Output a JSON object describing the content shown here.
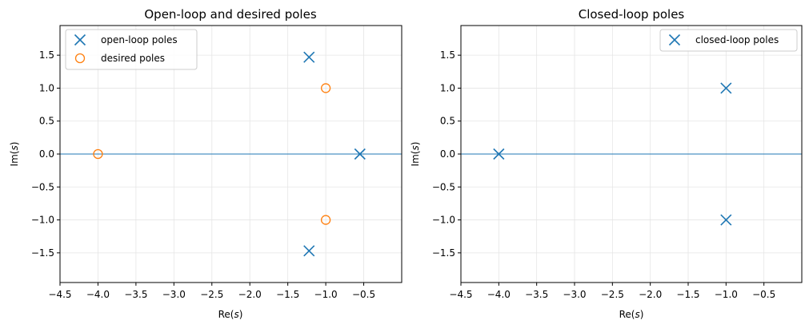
{
  "colors": {
    "blue": "#1f77b4",
    "orange": "#ff7f0e",
    "grid": "#e5e5e5"
  },
  "chart_data": [
    {
      "type": "scatter",
      "title": "Open-loop and desired poles",
      "xlabel": "Re(s)",
      "ylabel": "Im(s)",
      "xlim": [
        -4.5,
        0
      ],
      "ylim": [
        -1.95,
        1.95
      ],
      "xticks": [
        -4.5,
        -4.0,
        -3.5,
        -3.0,
        -2.5,
        -2.0,
        -1.5,
        -1.0,
        -0.5
      ],
      "xtick_labels": [
        "−4.5",
        "−4.0",
        "−3.5",
        "−3.0",
        "−2.5",
        "−2.0",
        "−1.5",
        "−1.0",
        "−0.5"
      ],
      "yticks": [
        1.5,
        1.0,
        0.5,
        0.0,
        -0.5,
        -1.0,
        -1.5
      ],
      "ytick_labels": [
        "1.5",
        "1.0",
        "0.5",
        "0.0",
        "−0.5",
        "−1.0",
        "−1.5"
      ],
      "grid": true,
      "zero_line": 0,
      "legend": "top-left",
      "series": [
        {
          "name": "open-loop poles",
          "marker": "x",
          "color": "#1f77b4",
          "points": [
            [
              -1.22,
              1.47
            ],
            [
              -1.22,
              -1.47
            ],
            [
              -0.55,
              0.0
            ]
          ]
        },
        {
          "name": "desired poles",
          "marker": "o",
          "color": "#ff7f0e",
          "points": [
            [
              -4.0,
              0.0
            ],
            [
              -1.0,
              1.0
            ],
            [
              -1.0,
              -1.0
            ]
          ]
        }
      ]
    },
    {
      "type": "scatter",
      "title": "Closed-loop poles",
      "xlabel": "Re(s)",
      "ylabel": "Im(s)",
      "xlim": [
        -4.5,
        0
      ],
      "ylim": [
        -1.95,
        1.95
      ],
      "xticks": [
        -4.5,
        -4.0,
        -3.5,
        -3.0,
        -2.5,
        -2.0,
        -1.5,
        -1.0,
        -0.5
      ],
      "xtick_labels": [
        "−4.5",
        "−4.0",
        "−3.5",
        "−3.0",
        "−2.5",
        "−2.0",
        "−1.5",
        "−1.0",
        "−0.5"
      ],
      "yticks": [
        1.5,
        1.0,
        0.5,
        0.0,
        -0.5,
        -1.0,
        -1.5
      ],
      "ytick_labels": [
        "1.5",
        "1.0",
        "0.5",
        "0.0",
        "−0.5",
        "−1.0",
        "−1.5"
      ],
      "grid": true,
      "zero_line": 0,
      "legend": "top-right",
      "series": [
        {
          "name": "closed-loop poles",
          "marker": "x",
          "color": "#1f77b4",
          "points": [
            [
              -4.0,
              0.0
            ],
            [
              -1.0,
              1.0
            ],
            [
              -1.0,
              -1.0
            ]
          ]
        }
      ]
    }
  ]
}
